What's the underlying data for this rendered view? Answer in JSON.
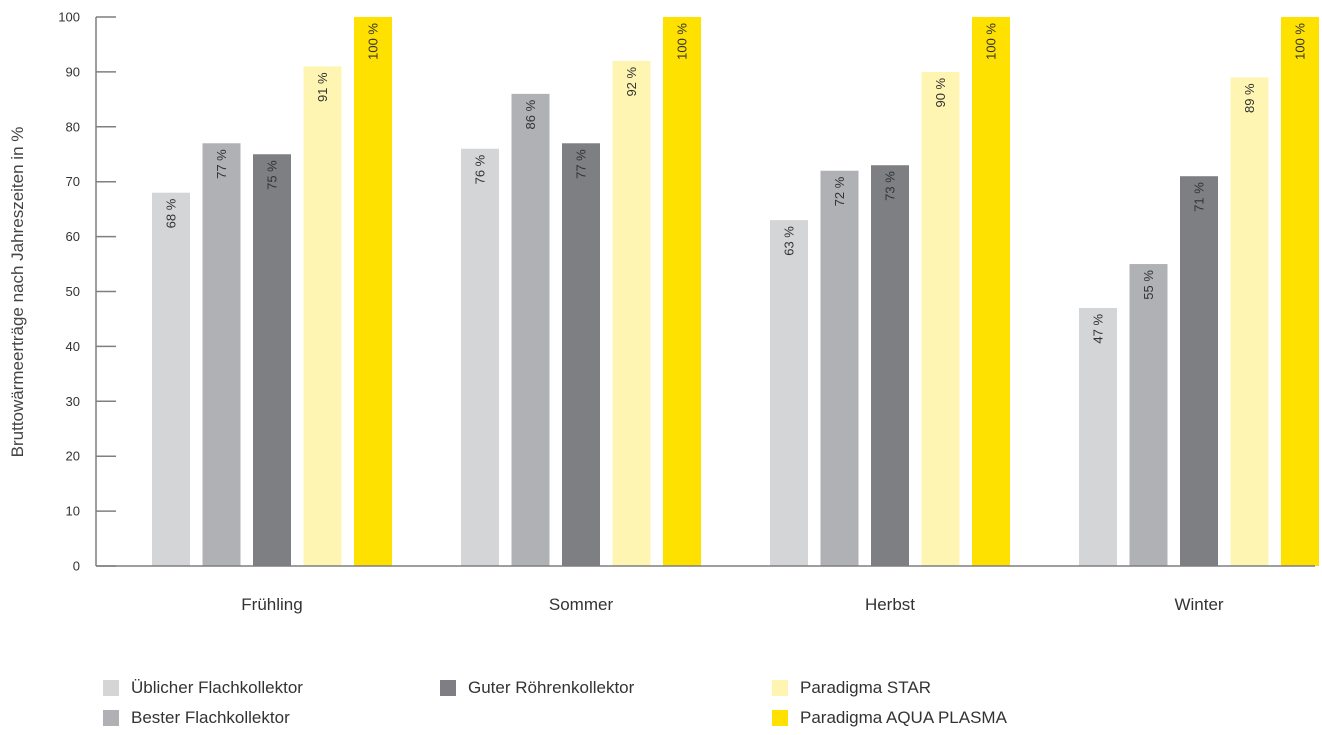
{
  "chart_data": {
    "type": "bar",
    "categories": [
      "Frühling",
      "Sommer",
      "Herbst",
      "Winter"
    ],
    "series": [
      {
        "name": "Üblicher Flachkollektor",
        "color": "#d4d5d7",
        "values": [
          68,
          76,
          63,
          47
        ],
        "labels": [
          "68 %",
          "76 %",
          "63 %",
          "47 %"
        ]
      },
      {
        "name": "Bester Flachkollektor",
        "color": "#b0b1b4",
        "values": [
          77,
          86,
          72,
          55
        ],
        "labels": [
          "77 %",
          "86 %",
          "72 %",
          "55 %"
        ]
      },
      {
        "name": "Guter Röhrenkollektor",
        "color": "#7e7f82",
        "values": [
          75,
          77,
          73,
          71
        ],
        "labels": [
          "75 %",
          "77 %",
          "73 %",
          "71 %"
        ]
      },
      {
        "name": "Paradigma STAR",
        "color": "#fff5b3",
        "values": [
          91,
          92,
          90,
          89
        ],
        "labels": [
          "91 %",
          "92 %",
          "90 %",
          "89 %"
        ]
      },
      {
        "name": "Paradigma AQUA PLASMA",
        "color": "#ffe100",
        "values": [
          100,
          100,
          100,
          100
        ],
        "labels": [
          "100 %",
          "100 %",
          "100 %",
          "100 %"
        ]
      }
    ],
    "title": "",
    "xlabel": "",
    "ylabel": "Bruttowärmeerträge nach Jahreszeiten in %",
    "ylim": [
      0,
      100
    ],
    "yticks": [
      0,
      10,
      20,
      30,
      40,
      50,
      60,
      70,
      80,
      90,
      100
    ],
    "grid": false,
    "legend_position": "bottom"
  }
}
